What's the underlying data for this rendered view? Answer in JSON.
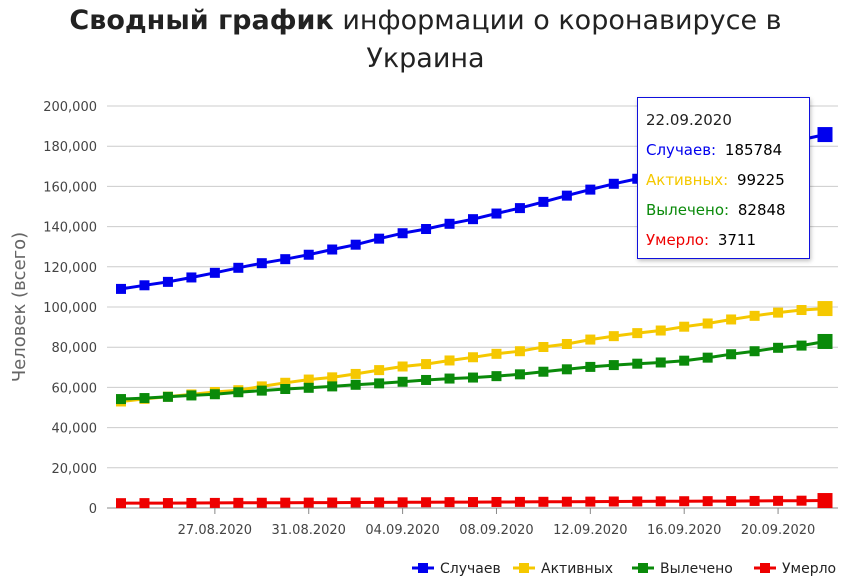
{
  "title": {
    "bold": "Сводный график",
    "rest": " информации о коронавирусе в",
    "line2": "Украина"
  },
  "chart_data": {
    "type": "line",
    "title": "Сводный график информации о коронавирусе в Украина",
    "ylabel": "Человек (всего)",
    "xlabel": "",
    "ylim": [
      0,
      200000
    ],
    "yticks": [
      "0",
      "20,000",
      "40,000",
      "60,000",
      "80,000",
      "100,000",
      "120,000",
      "140,000",
      "160,000",
      "180,000",
      "200,000"
    ],
    "xticks": [
      "27.08.2020",
      "31.08.2020",
      "04.09.2020",
      "08.09.2020",
      "12.09.2020",
      "16.09.2020",
      "20.09.2020"
    ],
    "grid": true,
    "legend_position": "bottom-right",
    "x": [
      "23.08.2020",
      "24.08.2020",
      "25.08.2020",
      "26.08.2020",
      "27.08.2020",
      "28.08.2020",
      "29.08.2020",
      "30.08.2020",
      "31.08.2020",
      "01.09.2020",
      "02.09.2020",
      "03.09.2020",
      "04.09.2020",
      "05.09.2020",
      "06.09.2020",
      "07.09.2020",
      "08.09.2020",
      "09.09.2020",
      "10.09.2020",
      "11.09.2020",
      "12.09.2020",
      "13.09.2020",
      "14.09.2020",
      "15.09.2020",
      "16.09.2020",
      "17.09.2020",
      "18.09.2020",
      "19.09.2020",
      "20.09.2020",
      "21.09.2020",
      "22.09.2020"
    ],
    "series": [
      {
        "name": "Случаев",
        "color": "#0000ee",
        "values": [
          109000,
          110800,
          112500,
          114700,
          117000,
          119500,
          121800,
          123800,
          126000,
          128600,
          131000,
          134000,
          136700,
          138800,
          141400,
          143700,
          146500,
          149200,
          152300,
          155400,
          158400,
          161300,
          163800,
          166200,
          168800,
          171600,
          174700,
          177900,
          180700,
          183300,
          185784
        ]
      },
      {
        "name": "Активных",
        "color": "#f5c800",
        "values": [
          53000,
          54300,
          55400,
          56500,
          57700,
          58600,
          60500,
          62300,
          63900,
          65000,
          66700,
          68600,
          70400,
          71600,
          73400,
          75000,
          76700,
          78000,
          80100,
          81600,
          83800,
          85500,
          87000,
          88300,
          90200,
          91800,
          93800,
          95600,
          97200,
          98500,
          99225
        ]
      },
      {
        "name": "Вылечено",
        "color": "#0a8a0a",
        "values": [
          54200,
          54700,
          55300,
          56000,
          56600,
          57600,
          58400,
          59200,
          59800,
          60500,
          61300,
          62000,
          62800,
          63700,
          64400,
          64900,
          65600,
          66500,
          67800,
          69000,
          70200,
          71100,
          71800,
          72400,
          73300,
          74800,
          76500,
          78000,
          79700,
          80800,
          82848
        ]
      },
      {
        "name": "Умерло",
        "color": "#ee0000",
        "values": [
          2400,
          2430,
          2460,
          2500,
          2530,
          2570,
          2610,
          2650,
          2680,
          2710,
          2750,
          2790,
          2830,
          2870,
          2920,
          2960,
          3000,
          3040,
          3080,
          3120,
          3170,
          3230,
          3270,
          3320,
          3370,
          3410,
          3450,
          3510,
          3560,
          3640,
          3711
        ]
      }
    ]
  },
  "tooltip": {
    "date": "22.09.2020",
    "rows": [
      {
        "label": "Случаев:",
        "value": "185784",
        "color": "#0000ee"
      },
      {
        "label": "Активных:",
        "value": "99225",
        "color": "#f5c800"
      },
      {
        "label": "Вылечено:",
        "value": "82848",
        "color": "#0a8a0a"
      },
      {
        "label": "Умерло:",
        "value": "3711",
        "color": "#ee0000"
      }
    ]
  }
}
